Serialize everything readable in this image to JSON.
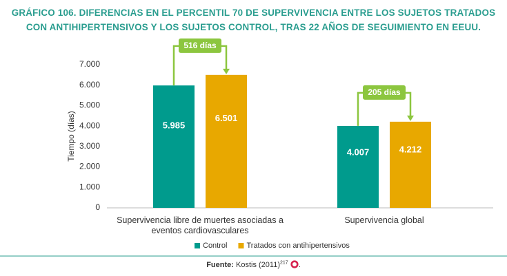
{
  "chart_data": {
    "type": "bar",
    "title": "GRÁFICO 106. DIFERENCIAS EN EL PERCENTIL 70 DE SUPERVIVENCIA ENTRE LOS SUJETOS TRATADOS CON ANTIHIPERTENSIVOS Y LOS SUJETOS CONTROL, TRAS 22 AÑOS DE SEGUIMIENTO EN EEUU.",
    "y_label": "Tiempo (días)",
    "categories": [
      "Supervivencia libre de muertes asociadas a eventos cardiovasculares",
      "Supervivencia global"
    ],
    "series": [
      {
        "name": "Control",
        "color": "#009b8d",
        "values": [
          5985,
          4007
        ],
        "value_labels": [
          "5.985",
          "4.007"
        ]
      },
      {
        "name": "Tratados con antihipertensivos",
        "color": "#e8a800",
        "values": [
          6501,
          4212
        ],
        "value_labels": [
          "6.501",
          "4.212"
        ]
      }
    ],
    "annotations": [
      "516 días",
      "205 días"
    ],
    "annotation_color": "#8cc63f",
    "ylim": [
      0,
      7000
    ],
    "yticks": [
      0,
      {
        "value": 1000,
        "label": "1.000"
      },
      {
        "value": 2000,
        "label": "2.000"
      },
      {
        "value": 3000,
        "label": "3.000"
      },
      {
        "value": 4000,
        "label": "4.000"
      },
      {
        "value": 5000,
        "label": "5.000"
      },
      {
        "value": 6000,
        "label": "6.000"
      },
      {
        "value": 7000,
        "label": "7.000"
      }
    ],
    "grid": false,
    "legend": "bottom",
    "source": {
      "label": "Fuente:",
      "text": "Kostis (2011)",
      "ref": "217"
    }
  }
}
